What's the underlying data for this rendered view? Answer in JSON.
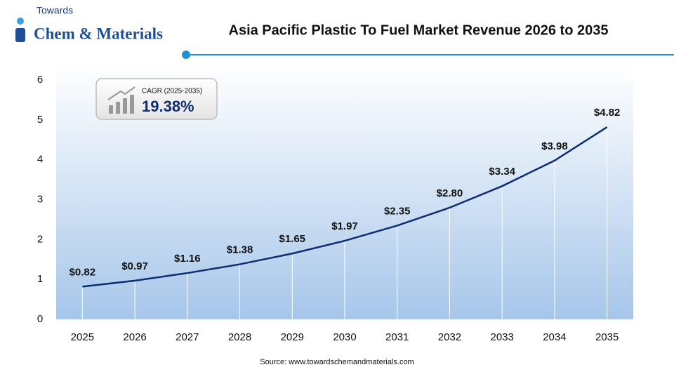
{
  "logo": {
    "line1": "Towards",
    "line2": "Chem & Materials"
  },
  "chart_data": {
    "type": "line",
    "title": "Asia Pacific Plastic To Fuel Market Revenue 2026 to 2035",
    "categories": [
      "2025",
      "2026",
      "2027",
      "2028",
      "2029",
      "2030",
      "2031",
      "2032",
      "2033",
      "2034",
      "2035"
    ],
    "values": [
      0.82,
      0.97,
      1.16,
      1.38,
      1.65,
      1.97,
      2.35,
      2.8,
      3.34,
      3.98,
      4.82
    ],
    "value_labels": [
      "$0.82",
      "$0.97",
      "$1.16",
      "$1.38",
      "$1.65",
      "$1.97",
      "$2.35",
      "$2.80",
      "$3.34",
      "$3.98",
      "$4.82"
    ],
    "color": "#0d2d6e",
    "ylim": [
      0,
      6
    ],
    "yticks": [
      0,
      1,
      2,
      3,
      4,
      5,
      6
    ],
    "cagr_label": "CAGR (2025-2035)",
    "cagr_value": "19.38%",
    "source": "Source: www.towardschemandmaterials.com"
  }
}
